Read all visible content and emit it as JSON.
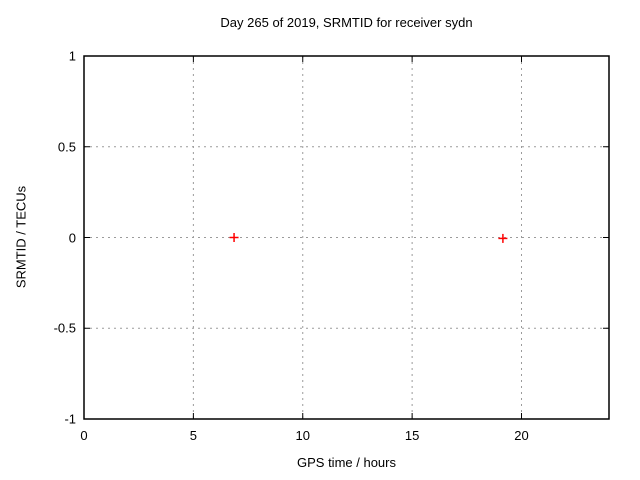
{
  "chart_data": {
    "type": "scatter",
    "title": "Day 265 of 2019, SRMTID for receiver sydn",
    "xlabel": "GPS time / hours",
    "ylabel": "SRMTID / TECUs",
    "xlim": [
      0,
      24
    ],
    "ylim": [
      -1,
      1
    ],
    "xticks": {
      "values": [
        0,
        5,
        10,
        15,
        20
      ],
      "labels": [
        "0",
        "5",
        "10",
        "15",
        "20"
      ]
    },
    "yticks": {
      "values": [
        -1,
        -0.5,
        0,
        0.5,
        1
      ],
      "labels": [
        "-1",
        "-0.5",
        "0",
        "0.5",
        "1"
      ]
    },
    "grid": true,
    "grid_color": "#9b9b9b",
    "axis_color": "#000000",
    "background_color": "#ffffff",
    "legend": "none",
    "series": [
      {
        "name": "SRMTID",
        "marker": "plus",
        "marker_color": "#ff0000",
        "points": [
          {
            "x": 6.86,
            "y": 0.0
          },
          {
            "x": 19.15,
            "y": -0.005
          }
        ]
      }
    ]
  }
}
